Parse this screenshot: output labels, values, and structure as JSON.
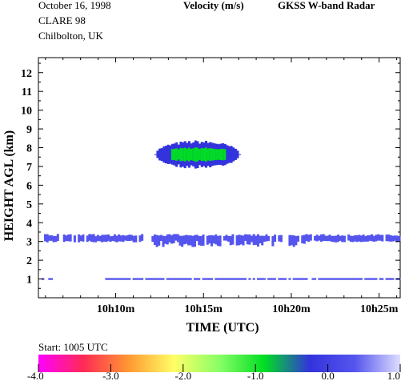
{
  "header": {
    "date": "October  16, 1998",
    "campaign": "CLARE 98",
    "location": "Chilbolton, UK",
    "quantity": "Velocity (m/s)",
    "instrument": "GKSS  W-band Radar"
  },
  "chart_data": {
    "type": "heatmap",
    "xlabel": "TIME (UTC)",
    "ylabel": "HEIGHT AGL (km)",
    "x_unit": "minutes",
    "xlim": [
      5.6,
      26.2
    ],
    "ylim": [
      0,
      12.8
    ],
    "x_ticks": [
      {
        "value": 10,
        "label": "10h10m"
      },
      {
        "value": 15,
        "label": "10h15m"
      },
      {
        "value": 20,
        "label": "10h20m"
      },
      {
        "value": 25,
        "label": "10h25m"
      }
    ],
    "y_ticks": [
      1,
      2,
      3,
      4,
      5,
      6,
      7,
      8,
      9,
      10,
      11,
      12
    ],
    "start_text": "Start: 1005 UTC",
    "colorbar": {
      "min": -4.0,
      "max": 1.0,
      "tick_labels": [
        "-4.0",
        "-3.0",
        "-2.0",
        "-1.0",
        "0.0",
        "1.0"
      ],
      "colors": [
        "#ff00ff",
        "#ff2a55",
        "#ff9933",
        "#ffff66",
        "#88ff66",
        "#00dd22",
        "#3333dd",
        "#5555ee",
        "#ddddff"
      ]
    },
    "echoes": [
      {
        "name": "mid-level cloud",
        "t_start": 12.2,
        "t_end": 17.0,
        "h_base": 7.0,
        "h_top": 8.3,
        "velocity": -0.6,
        "core_velocity": -1.1
      },
      {
        "name": "low cloud layer",
        "t_start": 5.6,
        "t_end": 26.2,
        "h_base": 2.8,
        "h_top": 3.4,
        "velocity": 0.2
      },
      {
        "name": "lowest echo",
        "t_start": 5.6,
        "t_end": 26.2,
        "h_base": 0.95,
        "h_top": 1.05,
        "velocity": 0.2
      }
    ]
  }
}
